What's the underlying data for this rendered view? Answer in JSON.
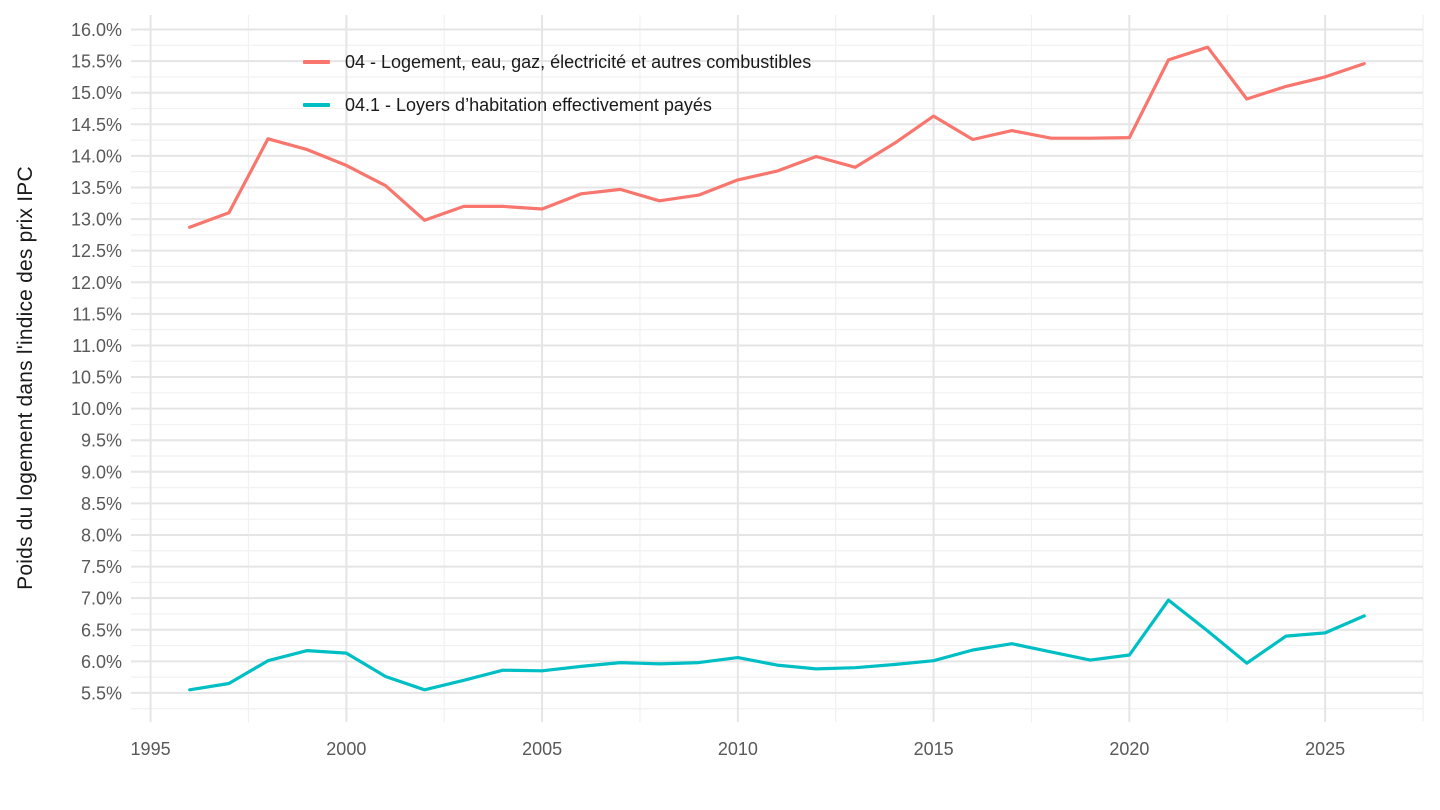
{
  "chart_data": {
    "type": "line",
    "title": "",
    "xlabel": "",
    "ylabel": "Poids du logement dans l'indice des prix IPC",
    "x": [
      1996,
      1997,
      1998,
      1999,
      2000,
      2001,
      2002,
      2003,
      2004,
      2005,
      2006,
      2007,
      2008,
      2009,
      2010,
      2011,
      2012,
      2013,
      2014,
      2015,
      2016,
      2017,
      2018,
      2019,
      2020,
      2021,
      2022,
      2023,
      2024,
      2025,
      2026
    ],
    "series": [
      {
        "id": "04",
        "name": "04 - Logement, eau, gaz, électricité et autres combustibles",
        "color": "#F8766D",
        "values": [
          12.87,
          13.1,
          14.27,
          14.1,
          13.85,
          13.53,
          12.98,
          13.2,
          13.2,
          13.16,
          13.4,
          13.47,
          13.29,
          13.38,
          13.62,
          13.76,
          13.99,
          13.82,
          14.2,
          14.63,
          14.26,
          14.4,
          14.28,
          14.28,
          14.29,
          15.52,
          15.72,
          14.9,
          15.1,
          15.25,
          15.46
        ]
      },
      {
        "id": "04.1",
        "name": "04.1 - Loyers d’habitation effectivement payés",
        "color": "#00BFC4",
        "values": [
          5.55,
          5.65,
          6.01,
          6.17,
          6.13,
          5.76,
          5.55,
          5.7,
          5.86,
          5.85,
          5.92,
          5.98,
          5.96,
          5.98,
          6.06,
          5.94,
          5.88,
          5.9,
          5.95,
          6.01,
          6.18,
          6.28,
          6.15,
          6.02,
          6.1,
          6.97,
          6.48,
          5.97,
          6.4,
          6.45,
          6.72
        ]
      }
    ],
    "x_axis": {
      "range": [
        1994.5,
        2027.5
      ],
      "ticks": [
        {
          "value": 1995,
          "label": "1995"
        },
        {
          "value": 2000,
          "label": "2000"
        },
        {
          "value": 2005,
          "label": "2005"
        },
        {
          "value": 2010,
          "label": "2010"
        },
        {
          "value": 2015,
          "label": "2015"
        },
        {
          "value": 2020,
          "label": "2020"
        },
        {
          "value": 2025,
          "label": "2025"
        }
      ],
      "minor_tick_step": 2.5
    },
    "y_axis": {
      "range": [
        5.04,
        16.23
      ],
      "ticks": [
        {
          "value": 16.0,
          "label": "16.0%"
        },
        {
          "value": 15.5,
          "label": "15.5%"
        },
        {
          "value": 15.0,
          "label": "15.0%"
        },
        {
          "value": 14.5,
          "label": "14.5%"
        },
        {
          "value": 14.0,
          "label": "14.0%"
        },
        {
          "value": 13.5,
          "label": "13.5%"
        },
        {
          "value": 13.0,
          "label": "13.0%"
        },
        {
          "value": 12.5,
          "label": "12.5%"
        },
        {
          "value": 12.0,
          "label": "12.0%"
        },
        {
          "value": 11.5,
          "label": "11.5%"
        },
        {
          "value": 11.0,
          "label": "11.0%"
        },
        {
          "value": 10.5,
          "label": "10.5%"
        },
        {
          "value": 10.0,
          "label": "10.0%"
        },
        {
          "value": 9.5,
          "label": "9.5%"
        },
        {
          "value": 9.0,
          "label": "9.0%"
        },
        {
          "value": 8.5,
          "label": "8.5%"
        },
        {
          "value": 8.0,
          "label": "8.0%"
        },
        {
          "value": 7.5,
          "label": "7.5%"
        },
        {
          "value": 7.0,
          "label": "7.0%"
        },
        {
          "value": 6.5,
          "label": "6.5%"
        },
        {
          "value": 6.0,
          "label": "6.0%"
        },
        {
          "value": 5.5,
          "label": "5.5%"
        }
      ],
      "minor_tick_step": 0.25
    },
    "legend_position": "top-left-inside",
    "grid": {
      "major_color": "#e5e5e5",
      "minor_color": "#f1f1f1",
      "background": "#ffffff"
    },
    "line_width": 3.2
  },
  "colors": {
    "background": "#ffffff",
    "axis_text": "#595959",
    "axis_title": "#1a1a1a",
    "legend_text": "#1a1a1a"
  }
}
